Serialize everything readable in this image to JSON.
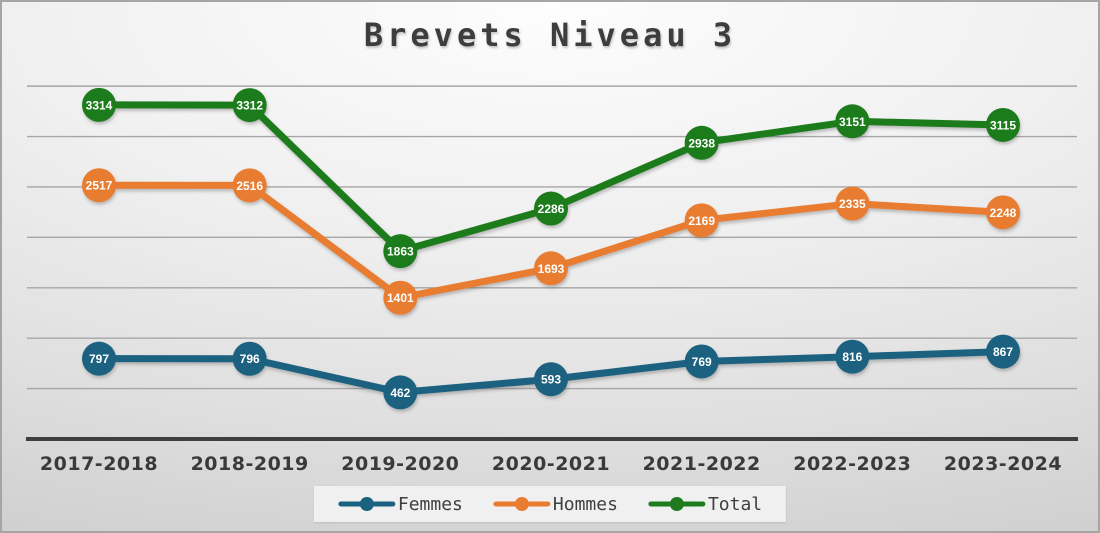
{
  "chart_data": {
    "type": "line",
    "title": "Brevets Niveau 3",
    "categories": [
      "2017-2018",
      "2018-2019",
      "2019-2020",
      "2020-2021",
      "2021-2022",
      "2022-2023",
      "2023-2024"
    ],
    "series": [
      {
        "name": "Femmes",
        "color": "#1a6280",
        "values": [
          797,
          796,
          462,
          593,
          769,
          816,
          867
        ]
      },
      {
        "name": "Hommes",
        "color": "#e87d31",
        "values": [
          2517,
          2516,
          1401,
          1693,
          2169,
          2335,
          2248
        ]
      },
      {
        "name": "Total",
        "color": "#1e7b1e",
        "values": [
          3314,
          3312,
          1863,
          2286,
          2938,
          3151,
          3115
        ]
      }
    ],
    "ylim": [
      0,
      3650
    ],
    "gridline_step": 500,
    "grid": true,
    "y_axis_labels_visible": false,
    "data_labels": true,
    "legend_position": "bottom",
    "xlabel": "",
    "ylabel": ""
  },
  "colors": {
    "gridline": "#a6a6a6",
    "axis": "#3f3f3f",
    "title_text": "#3d3d3d",
    "legend_background": "#f0f0f0"
  }
}
